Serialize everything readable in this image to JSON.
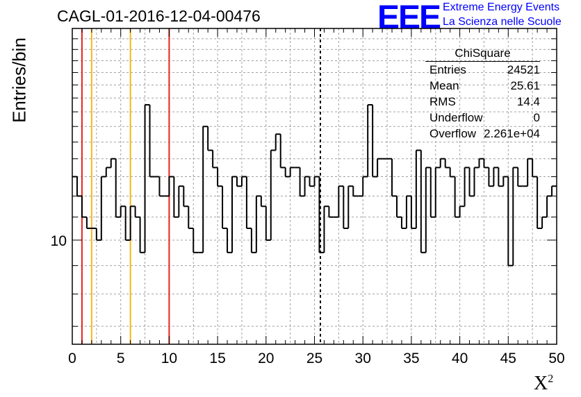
{
  "chart_data": {
    "type": "histogram",
    "title": "CAGL-01-2016-12-04-00476",
    "xlabel": "X",
    "xlabel_superscript": "2",
    "ylabel": "Entries/bin",
    "xlim": [
      0,
      50
    ],
    "ylim": [
      6.5,
      24
    ],
    "yscale": "log",
    "grid": true,
    "x_ticks": [
      0,
      5,
      10,
      15,
      20,
      25,
      30,
      35,
      40,
      45,
      50
    ],
    "y_tick_labels": [
      "10"
    ],
    "bin_width": 0.5,
    "bins": [
      [
        0,
        13
      ],
      [
        0.5,
        12
      ],
      [
        1,
        11
      ],
      [
        1.5,
        10.5
      ],
      [
        2,
        10.5
      ],
      [
        2.5,
        10
      ],
      [
        3,
        13
      ],
      [
        3.5,
        13.5
      ],
      [
        4,
        14
      ],
      [
        4.5,
        11
      ],
      [
        5,
        11.5
      ],
      [
        5.5,
        10
      ],
      [
        6,
        11.5
      ],
      [
        6.5,
        11
      ],
      [
        7,
        9.5
      ],
      [
        7.5,
        17.5
      ],
      [
        8,
        13
      ],
      [
        8.5,
        13
      ],
      [
        9,
        12
      ],
      [
        9.5,
        12
      ],
      [
        10,
        13
      ],
      [
        10.5,
        11
      ],
      [
        11,
        12.5
      ],
      [
        11.5,
        11.5
      ],
      [
        12,
        10.5
      ],
      [
        12.5,
        9.5
      ],
      [
        13,
        9.5
      ],
      [
        13.5,
        16
      ],
      [
        14,
        14.5
      ],
      [
        14.5,
        13.5
      ],
      [
        15,
        12.5
      ],
      [
        15.5,
        10.5
      ],
      [
        16,
        9.5
      ],
      [
        16.5,
        13
      ],
      [
        17,
        12.5
      ],
      [
        17.5,
        13
      ],
      [
        18,
        10.5
      ],
      [
        18.5,
        9.5
      ],
      [
        19,
        12
      ],
      [
        19.5,
        11.5
      ],
      [
        20,
        10
      ],
      [
        20.5,
        14.5
      ],
      [
        21,
        15.5
      ],
      [
        21.5,
        13.5
      ],
      [
        22,
        13
      ],
      [
        22.5,
        13.5
      ],
      [
        23,
        13.5
      ],
      [
        23.5,
        12
      ],
      [
        24,
        13
      ],
      [
        24.5,
        12.5
      ],
      [
        25,
        13
      ],
      [
        25.5,
        9.5
      ],
      [
        26,
        11.5
      ],
      [
        26.5,
        11
      ],
      [
        27,
        11
      ],
      [
        27.5,
        12.5
      ],
      [
        28,
        10.5
      ],
      [
        28.5,
        12.5
      ],
      [
        29,
        12
      ],
      [
        29.5,
        12
      ],
      [
        30,
        13
      ],
      [
        30.5,
        17.5
      ],
      [
        31,
        13
      ],
      [
        31.5,
        14
      ],
      [
        32,
        14
      ],
      [
        32.5,
        14
      ],
      [
        33,
        12
      ],
      [
        33.5,
        11
      ],
      [
        34,
        10.5
      ],
      [
        34.5,
        12
      ],
      [
        35,
        10.5
      ],
      [
        35.5,
        14.5
      ],
      [
        36,
        9.5
      ],
      [
        36.5,
        13.5
      ],
      [
        37,
        11
      ],
      [
        37.5,
        13.5
      ],
      [
        38,
        14
      ],
      [
        38.5,
        13.5
      ],
      [
        39,
        13
      ],
      [
        39.5,
        11
      ],
      [
        40,
        11.5
      ],
      [
        40.5,
        13.5
      ],
      [
        41,
        12
      ],
      [
        41.5,
        13.5
      ],
      [
        42,
        14
      ],
      [
        42.5,
        13.5
      ],
      [
        43,
        12.5
      ],
      [
        43.5,
        13.5
      ],
      [
        44,
        12.5
      ],
      [
        44.5,
        13
      ],
      [
        45,
        9
      ],
      [
        45.5,
        13.5
      ],
      [
        46,
        12.5
      ],
      [
        46.5,
        12.5
      ],
      [
        47,
        14
      ],
      [
        47.5,
        13
      ],
      [
        48,
        10.5
      ],
      [
        48.5,
        11
      ],
      [
        49,
        12
      ],
      [
        49.5,
        12.5
      ]
    ],
    "vertical_lines": [
      {
        "x": 1,
        "color": "#e8231a",
        "style": "solid"
      },
      {
        "x": 2,
        "color": "#f2b71d",
        "style": "solid"
      },
      {
        "x": 6,
        "color": "#f2b71d",
        "style": "solid"
      },
      {
        "x": 10,
        "color": "#e8231a",
        "style": "solid"
      },
      {
        "x": 25.61,
        "color": "#000000",
        "style": "dashed"
      }
    ]
  },
  "logo": {
    "mark": "EEE",
    "line1": "Extreme Energy Events",
    "line2": "La Scienza nelle Scuole",
    "color": "#0000ff"
  },
  "stats": {
    "title": "ChiSquare",
    "rows": [
      {
        "name": "Entries",
        "value": "24521"
      },
      {
        "name": "Mean",
        "value": "25.61"
      },
      {
        "name": "RMS",
        "value": "14.4"
      },
      {
        "name": "Underflow",
        "value": "0"
      },
      {
        "name": "Overflow",
        "value": "2.261e+04"
      }
    ]
  }
}
